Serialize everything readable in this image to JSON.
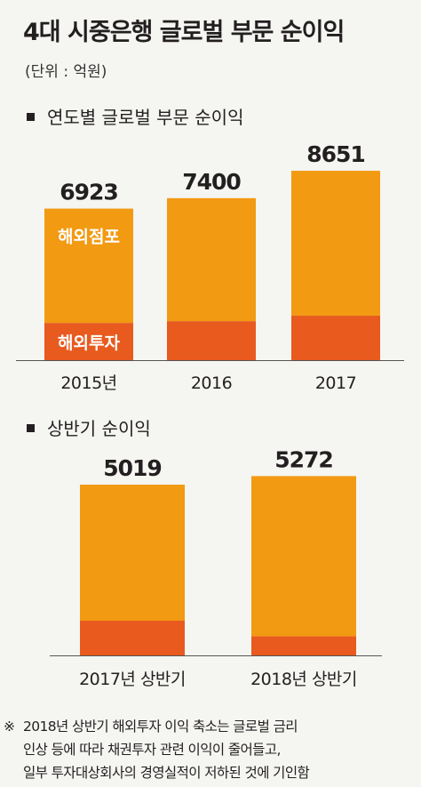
{
  "title": "4대 시중은행 글로벌 부문 순이익",
  "unit": "(단위 : 억원)",
  "colors": {
    "overseas_branch": "#f29a12",
    "overseas_invest": "#e85a1e",
    "text": "#231f20",
    "axis": "#555555"
  },
  "chart_data": [
    {
      "type": "bar",
      "title": "연도별 글로벌 부문 순이익",
      "categories": [
        "2015년",
        "2016",
        "2017"
      ],
      "totals": [
        6923,
        7400,
        8651
      ],
      "series": [
        {
          "name": "해외투자",
          "values": [
            1700,
            1780,
            2030
          ]
        },
        {
          "name": "해외점포",
          "values": [
            5223,
            5620,
            6621
          ]
        }
      ],
      "ylim": [
        0,
        9100
      ]
    },
    {
      "type": "bar",
      "title": "상반기 순이익",
      "categories": [
        "2017년 상반기",
        "2018년 상반기"
      ],
      "totals": [
        5019,
        5272
      ],
      "series": [
        {
          "name": "해외투자",
          "values": [
            1020,
            560
          ]
        },
        {
          "name": "해외점포",
          "values": [
            3999,
            4712
          ]
        }
      ],
      "ylim": [
        0,
        5700
      ]
    }
  ],
  "footnote": {
    "mark": "※",
    "lines": [
      "2018년 상반기 해외투자 이익 축소는 글로벌 금리",
      "인상 등에 따라 채권투자 관련 이익이 줄어들고,",
      "일부 투자대상회사의 경영실적이 저하된 것에 기인함"
    ]
  }
}
